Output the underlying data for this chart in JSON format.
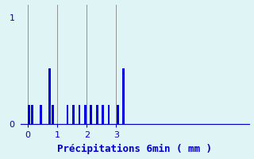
{
  "xlabel": "Précipitations 6min ( mm )",
  "bar_color": "#0000dd",
  "background_color": "#dff4f4",
  "text_color": "#0000cc",
  "grid_color": "#909090",
  "xlim": [
    -0.25,
    7.5
  ],
  "ylim": [
    0,
    1.12
  ],
  "yticks": [
    0,
    1
  ],
  "xticks": [
    0,
    1,
    2,
    3
  ],
  "bar_positions": [
    0.05,
    0.15,
    0.45,
    0.75,
    0.85,
    1.35,
    1.55,
    1.75,
    1.95,
    2.15,
    2.35,
    2.55,
    2.75,
    3.05,
    3.25
  ],
  "bar_heights": [
    0.18,
    0.18,
    0.18,
    0.52,
    0.18,
    0.18,
    0.18,
    0.18,
    0.18,
    0.18,
    0.18,
    0.18,
    0.18,
    0.18,
    0.52
  ],
  "bar_width": 0.07,
  "xlabel_fontsize": 9,
  "tick_fontsize": 8,
  "figsize": [
    3.2,
    2.0
  ],
  "dpi": 100
}
